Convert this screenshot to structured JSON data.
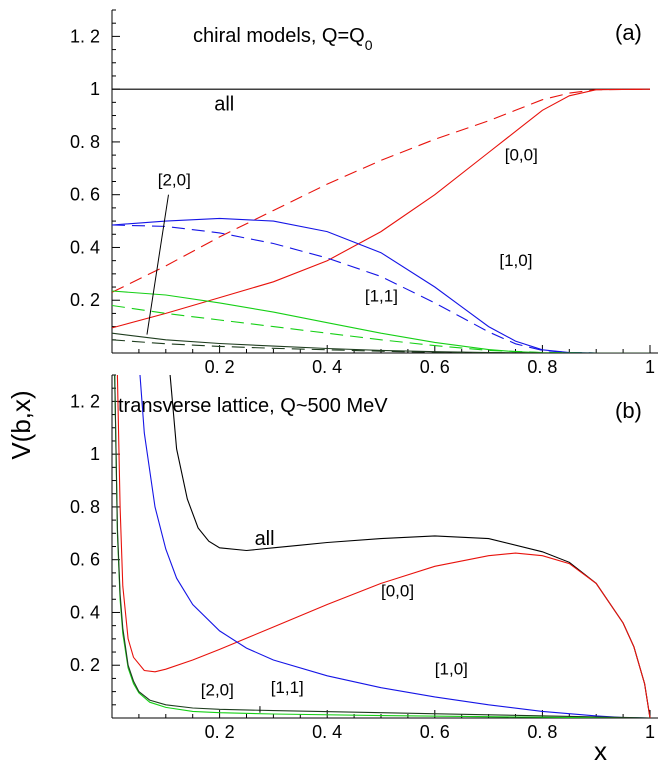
{
  "chart_data": [
    {
      "panel": "(a)",
      "type": "line",
      "title": "chiral models, Q=Q",
      "title_sub": "0",
      "panel_label": "(a)",
      "xlim": [
        0,
        1
      ],
      "ylim": [
        0,
        1.3
      ],
      "x_ticks": [
        "0. 2",
        "0. 4",
        "0. 6",
        "0. 8",
        "1"
      ],
      "y_ticks": [
        {
          "v": 0.2,
          "label": "0. 2"
        },
        {
          "v": 0.4,
          "label": "0. 4"
        },
        {
          "v": 0.6,
          "label": "0. 6"
        },
        {
          "v": 0.8,
          "label": "0. 8"
        },
        {
          "v": 1.0,
          "label": "1"
        },
        {
          "v": 1.2,
          "label": "1. 2"
        }
      ],
      "series": [
        {
          "name": "all",
          "color": "#000000",
          "dash": false,
          "x": [
            0,
            1
          ],
          "y": [
            1,
            1
          ]
        },
        {
          "name": "[0,0]",
          "color": "#e8120c",
          "dash": false,
          "x": [
            0,
            0.1,
            0.2,
            0.3,
            0.4,
            0.5,
            0.6,
            0.7,
            0.8,
            0.85,
            0.9,
            1.0
          ],
          "y": [
            0.095,
            0.15,
            0.21,
            0.27,
            0.35,
            0.46,
            0.6,
            0.76,
            0.92,
            0.975,
            0.998,
            1.0
          ]
        },
        {
          "name": "[0,0] dashed",
          "color": "#e8120c",
          "dash": true,
          "x": [
            0,
            0.1,
            0.2,
            0.3,
            0.4,
            0.5,
            0.6,
            0.7,
            0.75,
            0.8,
            0.85,
            0.9,
            1.0
          ],
          "y": [
            0.23,
            0.33,
            0.44,
            0.54,
            0.64,
            0.73,
            0.81,
            0.88,
            0.92,
            0.96,
            0.985,
            0.998,
            1.0
          ]
        },
        {
          "name": "[1,0]",
          "color": "#1515e6",
          "dash": false,
          "x": [
            0,
            0.1,
            0.2,
            0.3,
            0.4,
            0.5,
            0.6,
            0.65,
            0.7,
            0.75,
            0.8,
            0.85,
            0.9,
            1.0
          ],
          "y": [
            0.485,
            0.5,
            0.51,
            0.5,
            0.46,
            0.38,
            0.25,
            0.175,
            0.1,
            0.045,
            0.012,
            0.002,
            0,
            0
          ]
        },
        {
          "name": "[1,0] dashed",
          "color": "#1515e6",
          "dash": true,
          "x": [
            0,
            0.1,
            0.2,
            0.3,
            0.4,
            0.5,
            0.6,
            0.65,
            0.7,
            0.75,
            0.8,
            0.85,
            0.9,
            1.0
          ],
          "y": [
            0.485,
            0.48,
            0.455,
            0.415,
            0.36,
            0.29,
            0.19,
            0.135,
            0.08,
            0.035,
            0.01,
            0.002,
            0,
            0
          ]
        },
        {
          "name": "[1,1]",
          "color": "#16d016",
          "dash": false,
          "x": [
            0,
            0.1,
            0.2,
            0.3,
            0.4,
            0.5,
            0.6,
            0.7,
            0.75,
            0.8,
            0.9,
            1.0
          ],
          "y": [
            0.235,
            0.22,
            0.19,
            0.155,
            0.115,
            0.075,
            0.04,
            0.013,
            0.005,
            0.001,
            0,
            0
          ]
        },
        {
          "name": "[1,1] dashed",
          "color": "#16d016",
          "dash": true,
          "x": [
            0,
            0.1,
            0.2,
            0.3,
            0.4,
            0.5,
            0.6,
            0.7,
            0.8,
            0.9,
            1.0
          ],
          "y": [
            0.18,
            0.15,
            0.125,
            0.1,
            0.075,
            0.05,
            0.028,
            0.01,
            0.002,
            0,
            0
          ]
        },
        {
          "name": "[2,0]",
          "color": "#1f3d1f",
          "dash": false,
          "x": [
            0,
            0.1,
            0.2,
            0.3,
            0.4,
            0.5,
            0.6,
            0.7,
            0.8,
            0.9,
            1.0
          ],
          "y": [
            0.075,
            0.05,
            0.036,
            0.026,
            0.017,
            0.01,
            0.005,
            0.002,
            0,
            0,
            0
          ]
        },
        {
          "name": "[2,0] dashed",
          "color": "#1f3d1f",
          "dash": true,
          "x": [
            0,
            0.1,
            0.2,
            0.3,
            0.4,
            0.5,
            0.6,
            0.7,
            0.8,
            0.9,
            1.0
          ],
          "y": [
            0.05,
            0.035,
            0.025,
            0.018,
            0.012,
            0.007,
            0.003,
            0.001,
            0,
            0,
            0
          ]
        }
      ],
      "labels": [
        {
          "text": "all",
          "x": 0.19,
          "y": 0.92
        },
        {
          "text": "[0,0]",
          "x": 0.73,
          "y": 0.73
        },
        {
          "text": "[1,0]",
          "x": 0.72,
          "y": 0.33
        },
        {
          "text": "[1,1]",
          "x": 0.47,
          "y": 0.195
        },
        {
          "text": "[2,0]",
          "x": 0.085,
          "y": 0.635
        }
      ]
    },
    {
      "panel": "(b)",
      "type": "line",
      "title": "transverse lattice, Q~500 MeV",
      "panel_label": "(b)",
      "xlim": [
        0,
        1
      ],
      "ylim": [
        0,
        1.3
      ],
      "x_label": "x",
      "x_ticks": [
        "0. 2",
        "0. 4",
        "0. 6",
        "0. 8",
        "1"
      ],
      "y_ticks": [
        {
          "v": 0.2,
          "label": "0. 2"
        },
        {
          "v": 0.4,
          "label": "0. 4"
        },
        {
          "v": 0.6,
          "label": "0. 6"
        },
        {
          "v": 0.8,
          "label": "0. 8"
        },
        {
          "v": 1.0,
          "label": "1"
        },
        {
          "v": 1.2,
          "label": "1. 2"
        }
      ],
      "series": [
        {
          "name": "all",
          "color": "#000000",
          "dash": false,
          "x": [
            0.108,
            0.12,
            0.14,
            0.16,
            0.18,
            0.2,
            0.25,
            0.3,
            0.35,
            0.4,
            0.5,
            0.6,
            0.7,
            0.8,
            0.85,
            0.9,
            0.95,
            0.97,
            0.99,
            1.0
          ],
          "y": [
            1.3,
            1.02,
            0.83,
            0.72,
            0.67,
            0.645,
            0.635,
            0.645,
            0.655,
            0.665,
            0.68,
            0.69,
            0.68,
            0.63,
            0.59,
            0.51,
            0.36,
            0.27,
            0.13,
            0
          ]
        },
        {
          "name": "[0,0]",
          "color": "#e8120c",
          "dash": false,
          "x": [
            0.01,
            0.015,
            0.02,
            0.03,
            0.04,
            0.06,
            0.08,
            0.1,
            0.15,
            0.2,
            0.3,
            0.4,
            0.5,
            0.6,
            0.7,
            0.75,
            0.8,
            0.85,
            0.9,
            0.95,
            0.97,
            0.99,
            1.0
          ],
          "y": [
            1.3,
            0.8,
            0.5,
            0.3,
            0.23,
            0.18,
            0.175,
            0.185,
            0.22,
            0.26,
            0.345,
            0.43,
            0.51,
            0.575,
            0.615,
            0.625,
            0.615,
            0.585,
            0.51,
            0.36,
            0.27,
            0.13,
            0
          ]
        },
        {
          "name": "[1,0]",
          "color": "#1515e6",
          "dash": false,
          "x": [
            0.052,
            0.06,
            0.08,
            0.1,
            0.12,
            0.15,
            0.2,
            0.25,
            0.3,
            0.4,
            0.5,
            0.6,
            0.7,
            0.8,
            0.9,
            0.95,
            1.0
          ],
          "y": [
            1.3,
            1.08,
            0.8,
            0.64,
            0.53,
            0.43,
            0.33,
            0.265,
            0.22,
            0.16,
            0.115,
            0.08,
            0.05,
            0.025,
            0.008,
            0.002,
            0
          ]
        },
        {
          "name": "[1,1]",
          "color": "#16d016",
          "dash": false,
          "x": [
            0.005,
            0.01,
            0.015,
            0.02,
            0.03,
            0.04,
            0.05,
            0.07,
            0.1,
            0.15,
            0.2,
            0.3,
            0.5,
            0.7,
            0.9,
            1.0
          ],
          "y": [
            1.3,
            0.7,
            0.45,
            0.32,
            0.19,
            0.13,
            0.095,
            0.06,
            0.04,
            0.025,
            0.02,
            0.015,
            0.009,
            0.005,
            0.001,
            0
          ]
        },
        {
          "name": "[2,0]",
          "color": "#1f3d1f",
          "dash": false,
          "x": [
            0.005,
            0.01,
            0.015,
            0.02,
            0.03,
            0.04,
            0.05,
            0.07,
            0.1,
            0.15,
            0.2,
            0.3,
            0.5,
            0.7,
            0.9,
            1.0
          ],
          "y": [
            1.3,
            0.72,
            0.47,
            0.34,
            0.2,
            0.14,
            0.1,
            0.068,
            0.05,
            0.038,
            0.033,
            0.028,
            0.02,
            0.012,
            0.004,
            0
          ]
        }
      ],
      "labels": [
        {
          "text": "all",
          "x": 0.265,
          "y": 0.655
        },
        {
          "text": "[0,0]",
          "x": 0.5,
          "y": 0.46
        },
        {
          "text": "[1,0]",
          "x": 0.6,
          "y": 0.165
        },
        {
          "text": "[1,1]",
          "x": 0.295,
          "y": 0.095
        },
        {
          "text": "[2,0]",
          "x": 0.165,
          "y": 0.085
        }
      ]
    }
  ],
  "y_axis_label": "V(b,x)"
}
